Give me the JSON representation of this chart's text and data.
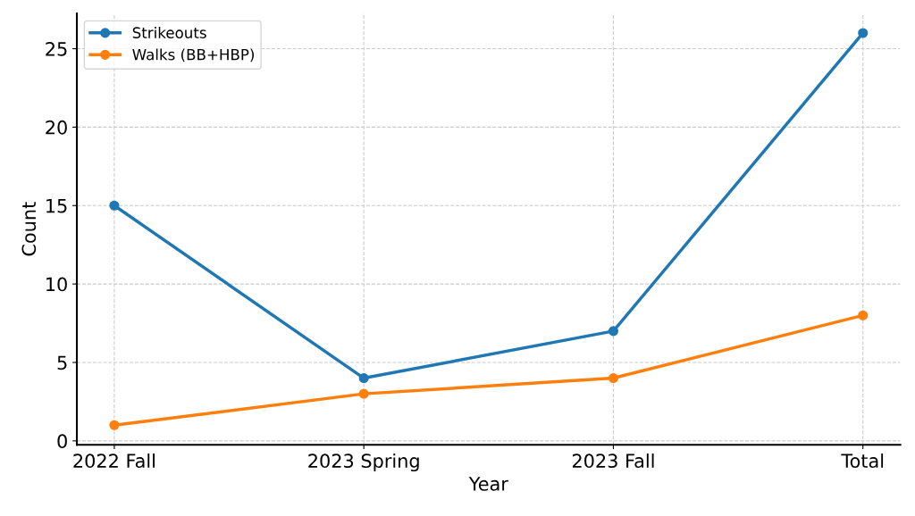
{
  "chart_data": {
    "type": "line",
    "xlabel": "Year",
    "ylabel": "Count",
    "categories": [
      "2022 Fall",
      "2023 Spring",
      "2023 Fall",
      "Total"
    ],
    "series": [
      {
        "name": "Strikeouts",
        "color": "#1f77b4",
        "values": [
          15,
          4,
          7,
          26
        ]
      },
      {
        "name": "Walks (BB+HBP)",
        "color": "#ff7f0e",
        "values": [
          1,
          3,
          4,
          8
        ]
      }
    ],
    "ylim": [
      -0.25,
      27.25
    ],
    "yticks": [
      0,
      5,
      10,
      15,
      20,
      25
    ],
    "grid": true,
    "legend": "top left",
    "marker": "circle",
    "line_style": "solid"
  }
}
